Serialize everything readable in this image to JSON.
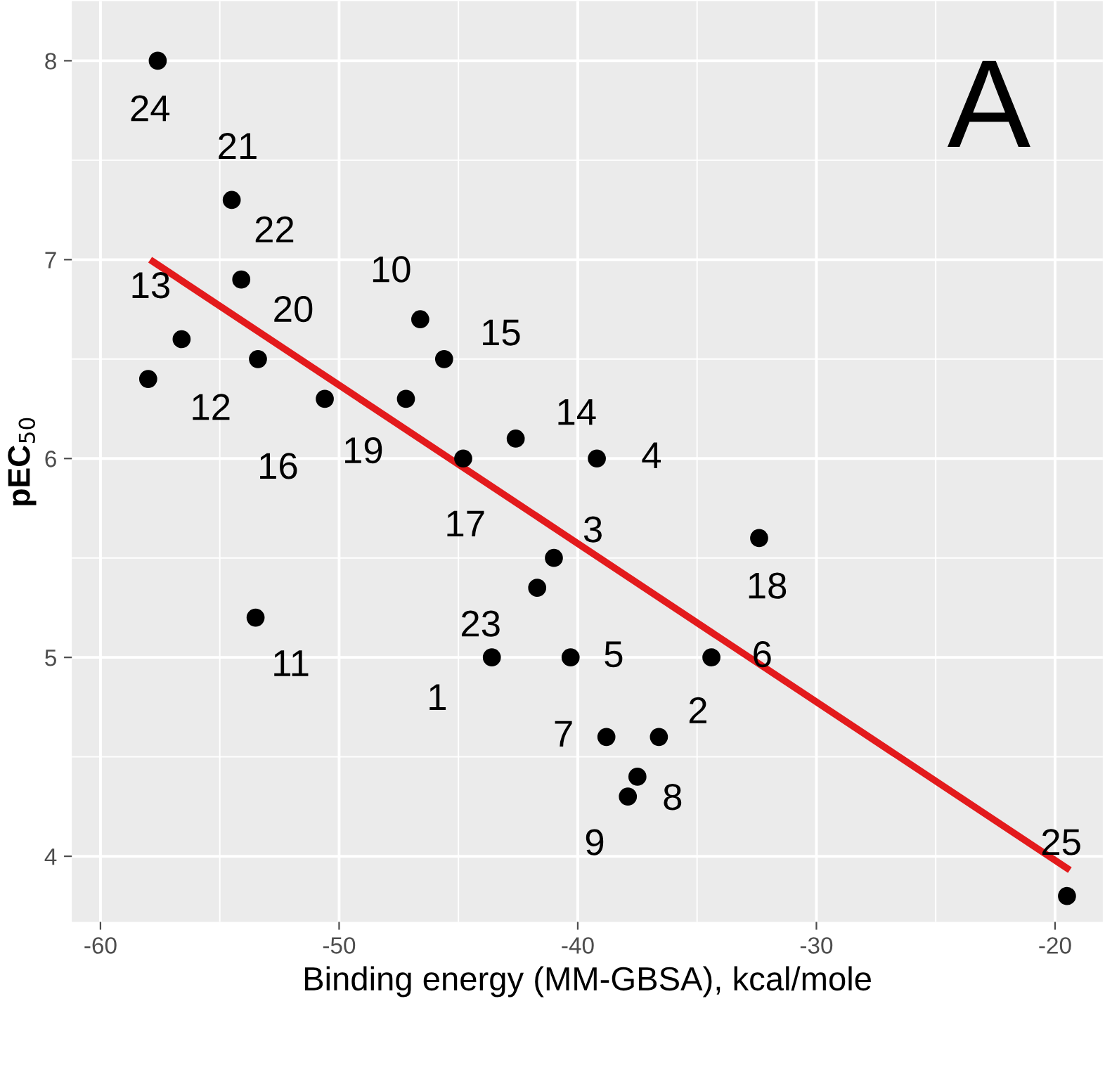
{
  "chart_data": {
    "type": "scatter",
    "xlabel": "Binding energy (MM-GBSA), kcal/mole",
    "ylabel": "pEC$_{50}$",
    "annotations": [
      "A",
      {
        "text": "1",
        "x": -43.6,
        "y": 5.0
      },
      {
        "text": "2",
        "x": -36.6,
        "y": 4.6
      },
      {
        "text": "3",
        "x": -41.0,
        "y": 5.5
      },
      {
        "text": "4",
        "x": -39.2,
        "y": 6.0
      },
      {
        "text": "5",
        "x": -40.3,
        "y": 5.0
      },
      {
        "text": "6",
        "x": -34.4,
        "y": 5.0
      },
      {
        "text": "7",
        "x": -38.8,
        "y": 4.6
      },
      {
        "text": "8",
        "x": -37.5,
        "y": 4.4
      },
      {
        "text": "9",
        "x": -37.9,
        "y": 4.3
      },
      {
        "text": "10",
        "x": -46.6,
        "y": 6.7
      },
      {
        "text": "11",
        "x": -53.5,
        "y": 5.2
      },
      {
        "text": "12",
        "x": -58.0,
        "y": 6.4
      },
      {
        "text": "13",
        "x": -56.6,
        "y": 6.6
      },
      {
        "text": "14",
        "x": -42.6,
        "y": 6.1
      },
      {
        "text": "15",
        "x": -45.6,
        "y": 6.5
      },
      {
        "text": "16",
        "x": -50.6,
        "y": 6.3
      },
      {
        "text": "17",
        "x": -44.8,
        "y": 6.0
      },
      {
        "text": "18",
        "x": -32.4,
        "y": 5.6
      },
      {
        "text": "19",
        "x": -47.2,
        "y": 6.3
      },
      {
        "text": "20",
        "x": -53.4,
        "y": 6.5
      },
      {
        "text": "21",
        "x": -54.5,
        "y": 7.3
      },
      {
        "text": "22",
        "x": -54.1,
        "y": 6.9
      },
      {
        "text": "23",
        "x": -41.7,
        "y": 5.35
      },
      {
        "text": "24",
        "x": -57.6,
        "y": 8.0
      },
      {
        "text": "25",
        "x": -19.5,
        "y": 3.8
      }
    ],
    "xlim": [
      -61.2,
      -18.0
    ],
    "ylim": [
      3.67,
      8.3
    ],
    "xticks": [
      -60,
      -50,
      -40,
      -30,
      -20
    ],
    "yticks": [
      4,
      5,
      6,
      7,
      8
    ],
    "grid": true,
    "series": [
      {
        "color": "#000000",
        "marker": "circle",
        "x": [
          -43.6,
          -36.6,
          -41.0,
          -39.2,
          -40.3,
          -34.4,
          -38.8,
          -37.5,
          -37.9,
          -46.6,
          -53.5,
          -58.0,
          -56.6,
          -42.6,
          -45.6,
          -50.6,
          -44.8,
          -32.4,
          -47.2,
          -53.4,
          -54.5,
          -54.1,
          -41.7,
          -57.6,
          -19.5
        ],
        "values": [
          5.0,
          4.6,
          5.5,
          6.0,
          5.0,
          5.0,
          4.6,
          4.4,
          4.3,
          6.7,
          5.2,
          6.4,
          6.6,
          6.1,
          6.5,
          6.3,
          6.0,
          5.6,
          6.3,
          6.5,
          7.3,
          6.9,
          5.35,
          8.0,
          3.8
        ]
      },
      {
        "type": "line",
        "color": "#e31a1c",
        "x": [
          -57.8,
          -19.5
        ],
        "values": [
          6.99,
          3.94
        ]
      }
    ]
  }
}
